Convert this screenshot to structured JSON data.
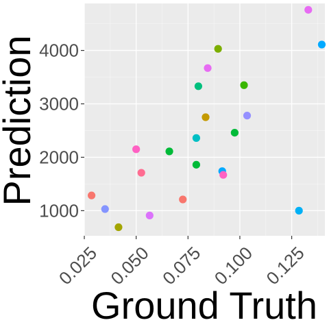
{
  "chart_data": {
    "type": "scatter",
    "xlabel": "Ground Truth",
    "ylabel": "Prediction",
    "xlim": [
      0.025,
      0.141
    ],
    "ylim": [
      530,
      4880
    ],
    "x_ticks": [
      0.025,
      0.05,
      0.075,
      0.1,
      0.125
    ],
    "x_tick_labels": [
      "0.025",
      "0.050",
      "0.075",
      "0.100",
      "0.125"
    ],
    "y_ticks": [
      1000,
      2000,
      3000,
      4000
    ],
    "y_tick_labels": [
      "1000",
      "2000",
      "3000",
      "4000"
    ],
    "grid": true,
    "legend": "none",
    "colors": {
      "panel": "#ebebeb",
      "grid_major": "#ffffff",
      "tick_text": "#4d4d4d"
    },
    "points": [
      {
        "x": 0.0285,
        "y": 1285,
        "color": "#F8766D"
      },
      {
        "x": 0.035,
        "y": 1030,
        "color": "#8494FF"
      },
      {
        "x": 0.0415,
        "y": 690,
        "color": "#A3A500"
      },
      {
        "x": 0.05,
        "y": 2150,
        "color": "#FF61C3"
      },
      {
        "x": 0.0525,
        "y": 1710,
        "color": "#FF6C91"
      },
      {
        "x": 0.0565,
        "y": 910,
        "color": "#DB72FB"
      },
      {
        "x": 0.066,
        "y": 2110,
        "color": "#00BA38"
      },
      {
        "x": 0.0725,
        "y": 1210,
        "color": "#F8766D"
      },
      {
        "x": 0.079,
        "y": 1860,
        "color": "#00BA38"
      },
      {
        "x": 0.079,
        "y": 2360,
        "color": "#00BFC4"
      },
      {
        "x": 0.08,
        "y": 3330,
        "color": "#00BF7D"
      },
      {
        "x": 0.0835,
        "y": 2750,
        "color": "#C49A00"
      },
      {
        "x": 0.0845,
        "y": 3670,
        "color": "#E76BF3"
      },
      {
        "x": 0.0895,
        "y": 4030,
        "color": "#7CAE00"
      },
      {
        "x": 0.0915,
        "y": 1740,
        "color": "#00A9FF"
      },
      {
        "x": 0.092,
        "y": 1670,
        "color": "#FF61C3"
      },
      {
        "x": 0.0975,
        "y": 2460,
        "color": "#00BA38"
      },
      {
        "x": 0.102,
        "y": 3350,
        "color": "#39B600"
      },
      {
        "x": 0.1035,
        "y": 2780,
        "color": "#9590FF"
      },
      {
        "x": 0.1285,
        "y": 1000,
        "color": "#00B0F6"
      },
      {
        "x": 0.133,
        "y": 4760,
        "color": "#E76BF3"
      },
      {
        "x": 0.1395,
        "y": 4110,
        "color": "#00A9FF"
      }
    ]
  }
}
